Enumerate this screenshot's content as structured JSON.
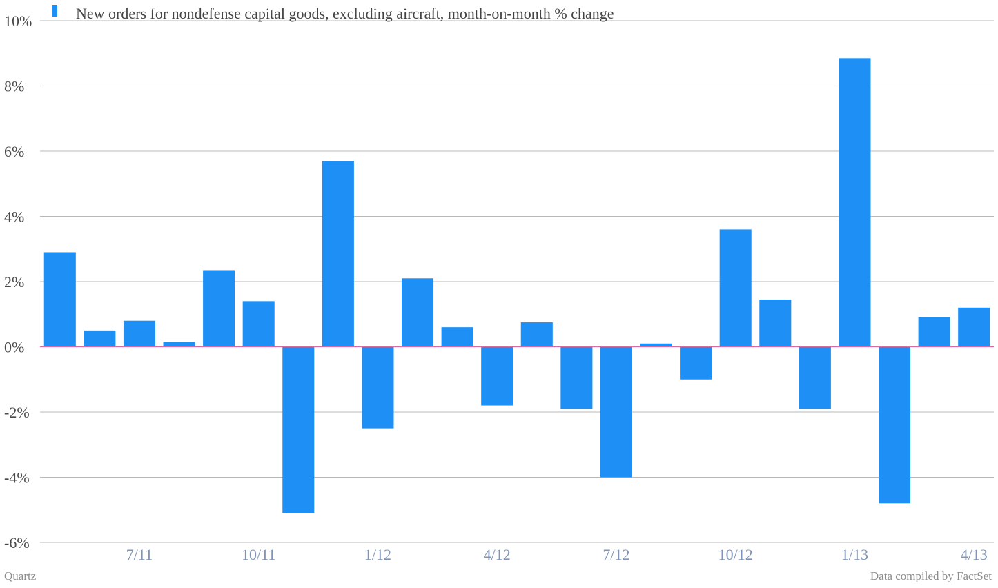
{
  "chart_data": {
    "type": "bar",
    "legend_position": "top-left",
    "grid": true,
    "colors": {
      "bar": "#1e8ff5",
      "zero_line": "#d86aa0",
      "grid": "#b8b8b8"
    },
    "series": [
      {
        "name": "New orders for nondefense capital goods, excluding aircraft, month-on-month % change",
        "values": [
          2.9,
          0.5,
          0.8,
          0.15,
          2.35,
          1.4,
          -5.1,
          5.7,
          -2.5,
          2.1,
          0.6,
          -1.8,
          0.75,
          -1.9,
          -4.0,
          0.1,
          -1.0,
          3.6,
          1.45,
          -1.9,
          8.85,
          -4.8,
          0.9,
          1.2
        ]
      }
    ],
    "ylim": [
      -6,
      10
    ],
    "yticks": [
      10,
      8,
      6,
      4,
      2,
      0,
      -2,
      -4,
      -6
    ],
    "ytick_labels": [
      "10%",
      "8%",
      "6%",
      "4%",
      "2%",
      "0%",
      "-2%",
      "-4%",
      "-6%"
    ],
    "xtick_labels": [
      {
        "index": 2,
        "label": "7/11"
      },
      {
        "index": 5,
        "label": "10/11"
      },
      {
        "index": 8,
        "label": "1/12"
      },
      {
        "index": 11,
        "label": "4/12"
      },
      {
        "index": 14,
        "label": "7/12"
      },
      {
        "index": 17,
        "label": "10/12"
      },
      {
        "index": 20,
        "label": "1/13"
      },
      {
        "index": 23,
        "label": "4/13"
      }
    ],
    "xlabel": "",
    "ylabel": ""
  },
  "footer": {
    "brand": "Quartz",
    "source": "Data compiled by FactSet"
  }
}
